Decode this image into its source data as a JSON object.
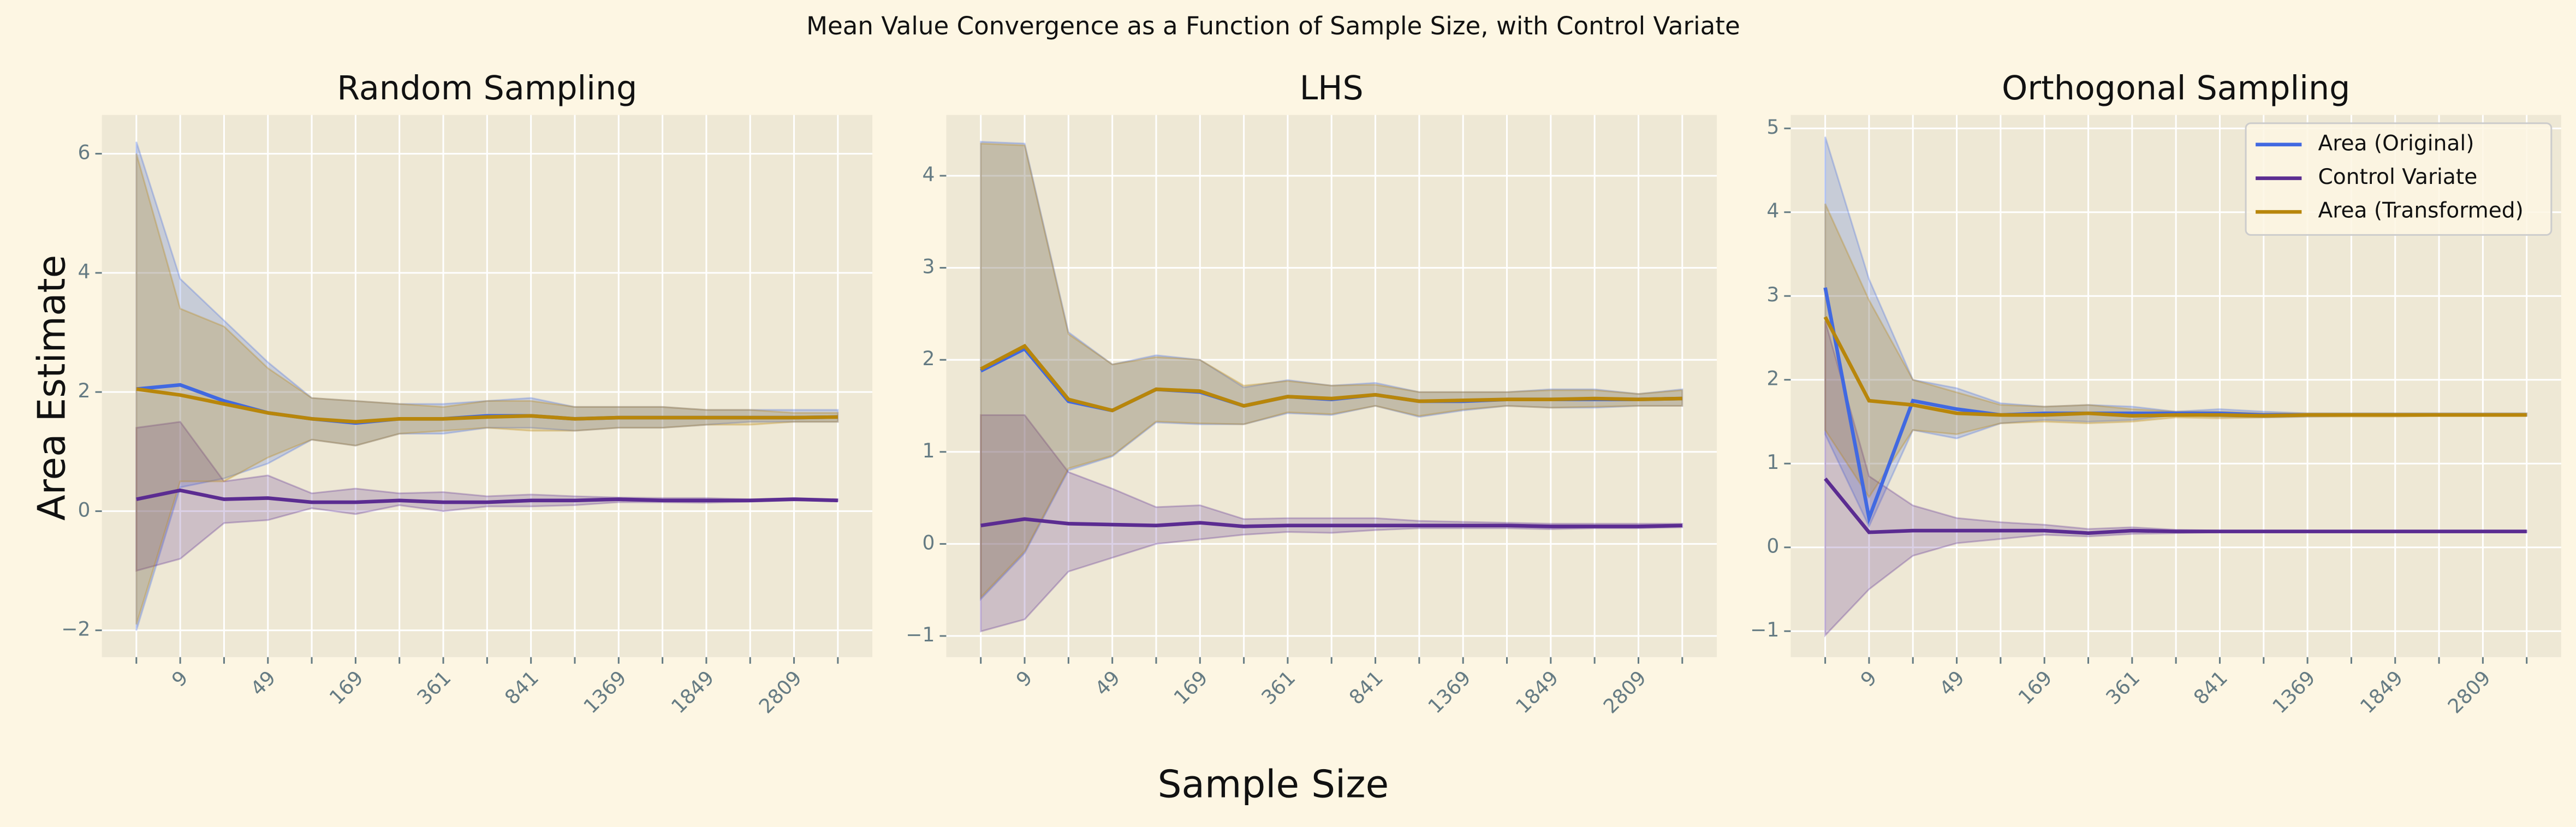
{
  "title": "Mean Value Convergence as a Function of Sample Size, with Control Variate",
  "xlabel": "Sample Size",
  "ylabel": "Area Estimate",
  "chart_data": [
    {
      "type": "line",
      "title": "Random Sampling",
      "categories": [
        null,
        "9",
        null,
        "49",
        null,
        "169",
        null,
        "361",
        null,
        "841",
        null,
        "1369",
        null,
        "1849",
        null,
        "2809",
        null
      ],
      "ylim": [
        -2.45,
        6.65
      ],
      "yticks": [
        {
          "value": -2,
          "label": "−2"
        },
        0,
        2,
        4,
        6
      ],
      "grid": true,
      "series": [
        {
          "name": "Area (Original)",
          "color": "#4169e1",
          "values": [
            2.05,
            2.12,
            1.85,
            1.65,
            1.55,
            1.48,
            1.55,
            1.55,
            1.6,
            1.6,
            1.55,
            1.57,
            1.57,
            1.57,
            1.57,
            1.57,
            1.58
          ],
          "upper": [
            6.2,
            3.9,
            3.2,
            2.5,
            1.9,
            1.85,
            1.8,
            1.8,
            1.85,
            1.9,
            1.75,
            1.75,
            1.75,
            1.7,
            1.7,
            1.7,
            1.7
          ],
          "lower": [
            -2.0,
            0.4,
            0.55,
            0.8,
            1.2,
            1.1,
            1.3,
            1.3,
            1.4,
            1.4,
            1.35,
            1.4,
            1.4,
            1.45,
            1.5,
            1.5,
            1.5
          ]
        },
        {
          "name": "Control Variate",
          "color": "#5b2c91",
          "values": [
            0.2,
            0.35,
            0.2,
            0.22,
            0.15,
            0.15,
            0.18,
            0.15,
            0.15,
            0.18,
            0.18,
            0.2,
            0.18,
            0.18,
            0.18,
            0.2,
            0.18
          ],
          "upper": [
            1.4,
            1.5,
            0.5,
            0.6,
            0.3,
            0.38,
            0.3,
            0.32,
            0.25,
            0.28,
            0.25,
            0.23,
            0.22,
            0.22,
            0.2,
            0.22,
            0.2
          ],
          "lower": [
            -1.0,
            -0.8,
            -0.2,
            -0.15,
            0.05,
            -0.05,
            0.1,
            0.0,
            0.08,
            0.08,
            0.1,
            0.15,
            0.15,
            0.14,
            0.16,
            0.18,
            0.17
          ]
        },
        {
          "name": "Area (Transformed)",
          "color": "#b8860b",
          "values": [
            2.05,
            1.95,
            1.8,
            1.65,
            1.55,
            1.5,
            1.55,
            1.55,
            1.58,
            1.6,
            1.55,
            1.57,
            1.57,
            1.57,
            1.57,
            1.57,
            1.58
          ],
          "upper": [
            6.0,
            3.4,
            3.1,
            2.4,
            1.9,
            1.85,
            1.8,
            1.75,
            1.85,
            1.85,
            1.75,
            1.75,
            1.75,
            1.7,
            1.7,
            1.65,
            1.65
          ],
          "lower": [
            -1.9,
            0.5,
            0.5,
            0.9,
            1.2,
            1.1,
            1.3,
            1.35,
            1.4,
            1.35,
            1.35,
            1.4,
            1.4,
            1.45,
            1.45,
            1.5,
            1.5
          ]
        }
      ]
    },
    {
      "type": "line",
      "title": "LHS",
      "categories": [
        null,
        "9",
        null,
        "49",
        null,
        "169",
        null,
        "361",
        null,
        "841",
        null,
        "1369",
        null,
        "1849",
        null,
        "2809",
        null
      ],
      "ylim": [
        -1.23,
        4.66
      ],
      "yticks": [
        {
          "value": -1,
          "label": "−1"
        },
        0,
        1,
        2,
        3,
        4
      ],
      "grid": true,
      "series": [
        {
          "name": "Area (Original)",
          "color": "#4169e1",
          "values": [
            1.88,
            2.12,
            1.55,
            1.45,
            1.68,
            1.65,
            1.5,
            1.6,
            1.57,
            1.62,
            1.55,
            1.55,
            1.57,
            1.57,
            1.57,
            1.57,
            1.58
          ],
          "upper": [
            4.37,
            4.35,
            2.3,
            1.95,
            2.05,
            2.0,
            1.7,
            1.78,
            1.72,
            1.75,
            1.65,
            1.65,
            1.65,
            1.68,
            1.68,
            1.63,
            1.68
          ],
          "lower": [
            -0.6,
            -0.1,
            0.8,
            0.95,
            1.32,
            1.3,
            1.3,
            1.42,
            1.4,
            1.5,
            1.38,
            1.45,
            1.5,
            1.48,
            1.48,
            1.5,
            1.5
          ]
        },
        {
          "name": "Control Variate",
          "color": "#5b2c91",
          "values": [
            0.2,
            0.27,
            0.22,
            0.21,
            0.2,
            0.23,
            0.19,
            0.2,
            0.2,
            0.2,
            0.2,
            0.2,
            0.2,
            0.19,
            0.19,
            0.19,
            0.2
          ],
          "upper": [
            1.4,
            1.4,
            0.78,
            0.6,
            0.4,
            0.42,
            0.27,
            0.28,
            0.28,
            0.28,
            0.25,
            0.24,
            0.23,
            0.22,
            0.22,
            0.22,
            0.22
          ],
          "lower": [
            -0.95,
            -0.82,
            -0.3,
            -0.15,
            0.0,
            0.05,
            0.1,
            0.13,
            0.12,
            0.15,
            0.17,
            0.17,
            0.17,
            0.16,
            0.17,
            0.17,
            0.18
          ]
        },
        {
          "name": "Area (Transformed)",
          "color": "#b8860b",
          "values": [
            1.9,
            2.15,
            1.57,
            1.45,
            1.68,
            1.66,
            1.5,
            1.6,
            1.58,
            1.62,
            1.55,
            1.56,
            1.57,
            1.57,
            1.58,
            1.57,
            1.58
          ],
          "upper": [
            4.35,
            4.33,
            2.28,
            1.95,
            2.03,
            2.0,
            1.72,
            1.77,
            1.72,
            1.73,
            1.65,
            1.65,
            1.65,
            1.67,
            1.67,
            1.63,
            1.67
          ],
          "lower": [
            -0.58,
            -0.08,
            0.82,
            0.96,
            1.33,
            1.31,
            1.3,
            1.43,
            1.41,
            1.5,
            1.39,
            1.46,
            1.5,
            1.48,
            1.49,
            1.5,
            1.5
          ]
        }
      ]
    },
    {
      "type": "line",
      "title": "Orthogonal Sampling",
      "categories": [
        null,
        "9",
        null,
        "49",
        null,
        "169",
        null,
        "361",
        null,
        "841",
        null,
        "1369",
        null,
        "1849",
        null,
        "2809",
        null
      ],
      "ylim": [
        -1.31,
        5.16
      ],
      "yticks": [
        {
          "value": -1,
          "label": "−1"
        },
        0,
        1,
        2,
        3,
        4,
        5
      ],
      "grid": true,
      "legend": "upper right",
      "series": [
        {
          "name": "Area (Original)",
          "color": "#4169e1",
          "values": [
            3.1,
            0.35,
            1.75,
            1.65,
            1.58,
            1.6,
            1.6,
            1.6,
            1.6,
            1.6,
            1.58,
            1.58,
            1.58,
            1.58,
            1.58,
            1.58,
            1.58
          ],
          "upper": [
            4.9,
            3.2,
            2.0,
            1.9,
            1.72,
            1.68,
            1.7,
            1.68,
            1.62,
            1.65,
            1.62,
            1.6,
            1.6,
            1.6,
            1.6,
            1.6,
            1.6
          ],
          "lower": [
            1.35,
            0.25,
            1.4,
            1.3,
            1.48,
            1.52,
            1.5,
            1.52,
            1.58,
            1.56,
            1.55,
            1.56,
            1.57,
            1.57,
            1.57,
            1.57,
            1.57
          ]
        },
        {
          "name": "Control Variate",
          "color": "#5b2c91",
          "values": [
            0.82,
            0.18,
            0.2,
            0.2,
            0.2,
            0.2,
            0.17,
            0.2,
            0.19,
            0.19,
            0.19,
            0.19,
            0.19,
            0.19,
            0.19,
            0.19,
            0.19
          ],
          "upper": [
            2.7,
            0.85,
            0.5,
            0.35,
            0.3,
            0.27,
            0.22,
            0.24,
            0.21,
            0.2,
            0.2,
            0.2,
            0.2,
            0.2,
            0.2,
            0.2,
            0.2
          ],
          "lower": [
            -1.05,
            -0.5,
            -0.1,
            0.05,
            0.1,
            0.15,
            0.13,
            0.16,
            0.17,
            0.18,
            0.18,
            0.18,
            0.18,
            0.18,
            0.18,
            0.18,
            0.18
          ]
        },
        {
          "name": "Area (Transformed)",
          "color": "#b8860b",
          "values": [
            2.75,
            1.75,
            1.7,
            1.6,
            1.58,
            1.58,
            1.6,
            1.57,
            1.58,
            1.58,
            1.57,
            1.58,
            1.58,
            1.58,
            1.58,
            1.58,
            1.58
          ],
          "upper": [
            4.1,
            2.95,
            2.0,
            1.85,
            1.7,
            1.68,
            1.7,
            1.65,
            1.62,
            1.62,
            1.6,
            1.6,
            1.6,
            1.6,
            1.6,
            1.6,
            1.6
          ],
          "lower": [
            1.4,
            0.6,
            1.4,
            1.35,
            1.48,
            1.5,
            1.48,
            1.5,
            1.55,
            1.54,
            1.55,
            1.56,
            1.56,
            1.56,
            1.57,
            1.57,
            1.57
          ]
        }
      ]
    }
  ]
}
